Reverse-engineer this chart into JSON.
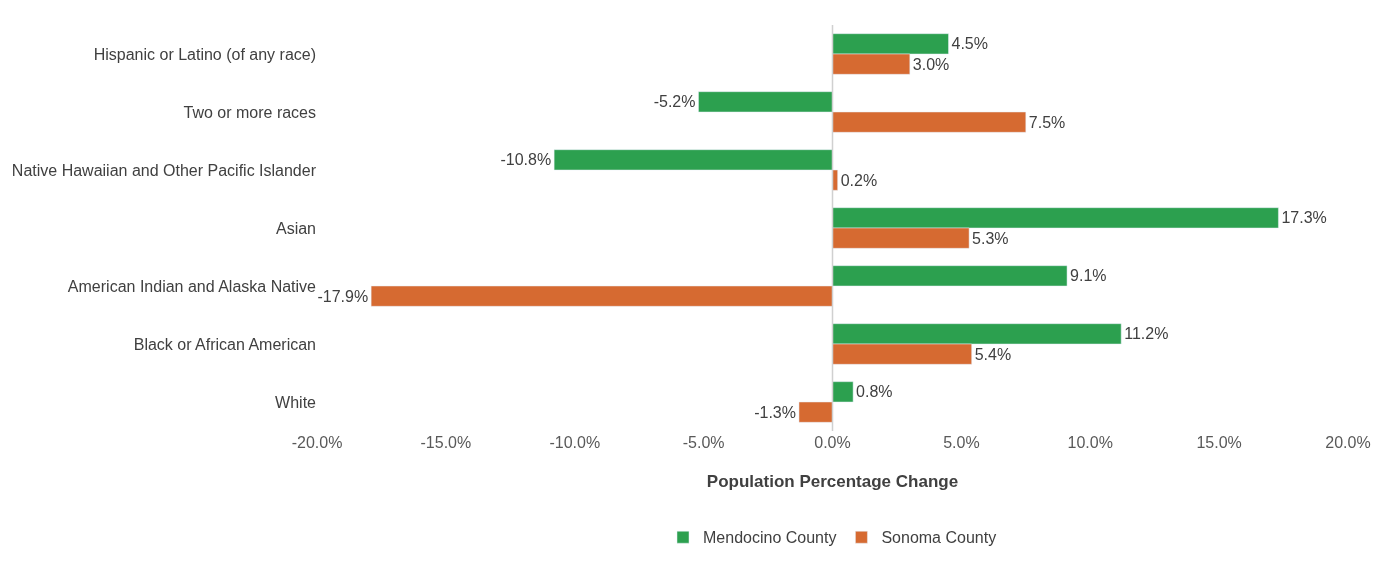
{
  "chart_data": {
    "type": "bar",
    "orientation": "horizontal",
    "xlabel": "Population Percentage Change",
    "categories": [
      "Hispanic or Latino (of any race)",
      "Two or more races",
      "Native Hawaiian and Other Pacific Islander",
      "Asian",
      "American Indian and Alaska Native",
      "Black or African American",
      "White"
    ],
    "series": [
      {
        "name": "Mendocino County",
        "color": "#2ca04f",
        "values": [
          4.5,
          -5.2,
          -10.8,
          17.3,
          9.1,
          11.2,
          0.8
        ],
        "value_labels": [
          "4.5%",
          "-5.2%",
          "-10.8%",
          "17.3%",
          "9.1%",
          "11.2%",
          "0.8%"
        ]
      },
      {
        "name": "Sonoma County",
        "color": "#d66a31",
        "values": [
          3.0,
          7.5,
          0.2,
          5.3,
          -17.9,
          5.4,
          -1.3
        ],
        "value_labels": [
          "3.0%",
          "7.5%",
          "0.2%",
          "5.3%",
          "-17.9%",
          "5.4%",
          "-1.3%"
        ]
      }
    ],
    "xlim": [
      -20,
      20
    ],
    "xticks": [
      {
        "value": -20,
        "label": "-20.0%"
      },
      {
        "value": -15,
        "label": "-15.0%"
      },
      {
        "value": -10,
        "label": "-10.0%"
      },
      {
        "value": -5,
        "label": "-5.0%"
      },
      {
        "value": 0,
        "label": "0.0%"
      },
      {
        "value": 5,
        "label": "5.0%"
      },
      {
        "value": 10,
        "label": "10.0%"
      },
      {
        "value": 15,
        "label": "15.0%"
      },
      {
        "value": 20,
        "label": "20.0%"
      }
    ],
    "legend": "bottom"
  }
}
